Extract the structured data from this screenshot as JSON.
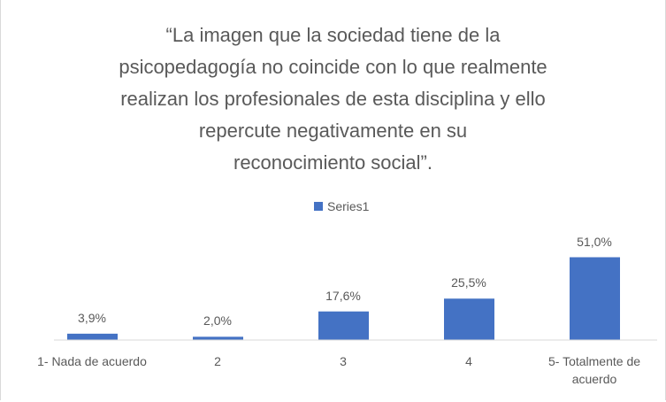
{
  "chart_data": {
    "type": "bar",
    "title": "“La imagen que la sociedad tiene de la\npsicopedagogía no coincide con lo que realmente\nrealizan los profesionales de esta disciplina y ello\nrepercute negativamente en su\nreconocimiento social”.",
    "categories": [
      "1- Nada de acuerdo",
      "2",
      "3",
      "4",
      "5- Totalmente de acuerdo"
    ],
    "series": [
      {
        "name": "Series1",
        "color": "#4472c4",
        "values": [
          3.9,
          2.0,
          17.6,
          25.5,
          51.0
        ],
        "value_labels": [
          "3,9%",
          "2,0%",
          "17,6%",
          "25,5%",
          "51,0%"
        ]
      }
    ],
    "ylim": [
      0,
      60
    ],
    "legend": "top"
  }
}
